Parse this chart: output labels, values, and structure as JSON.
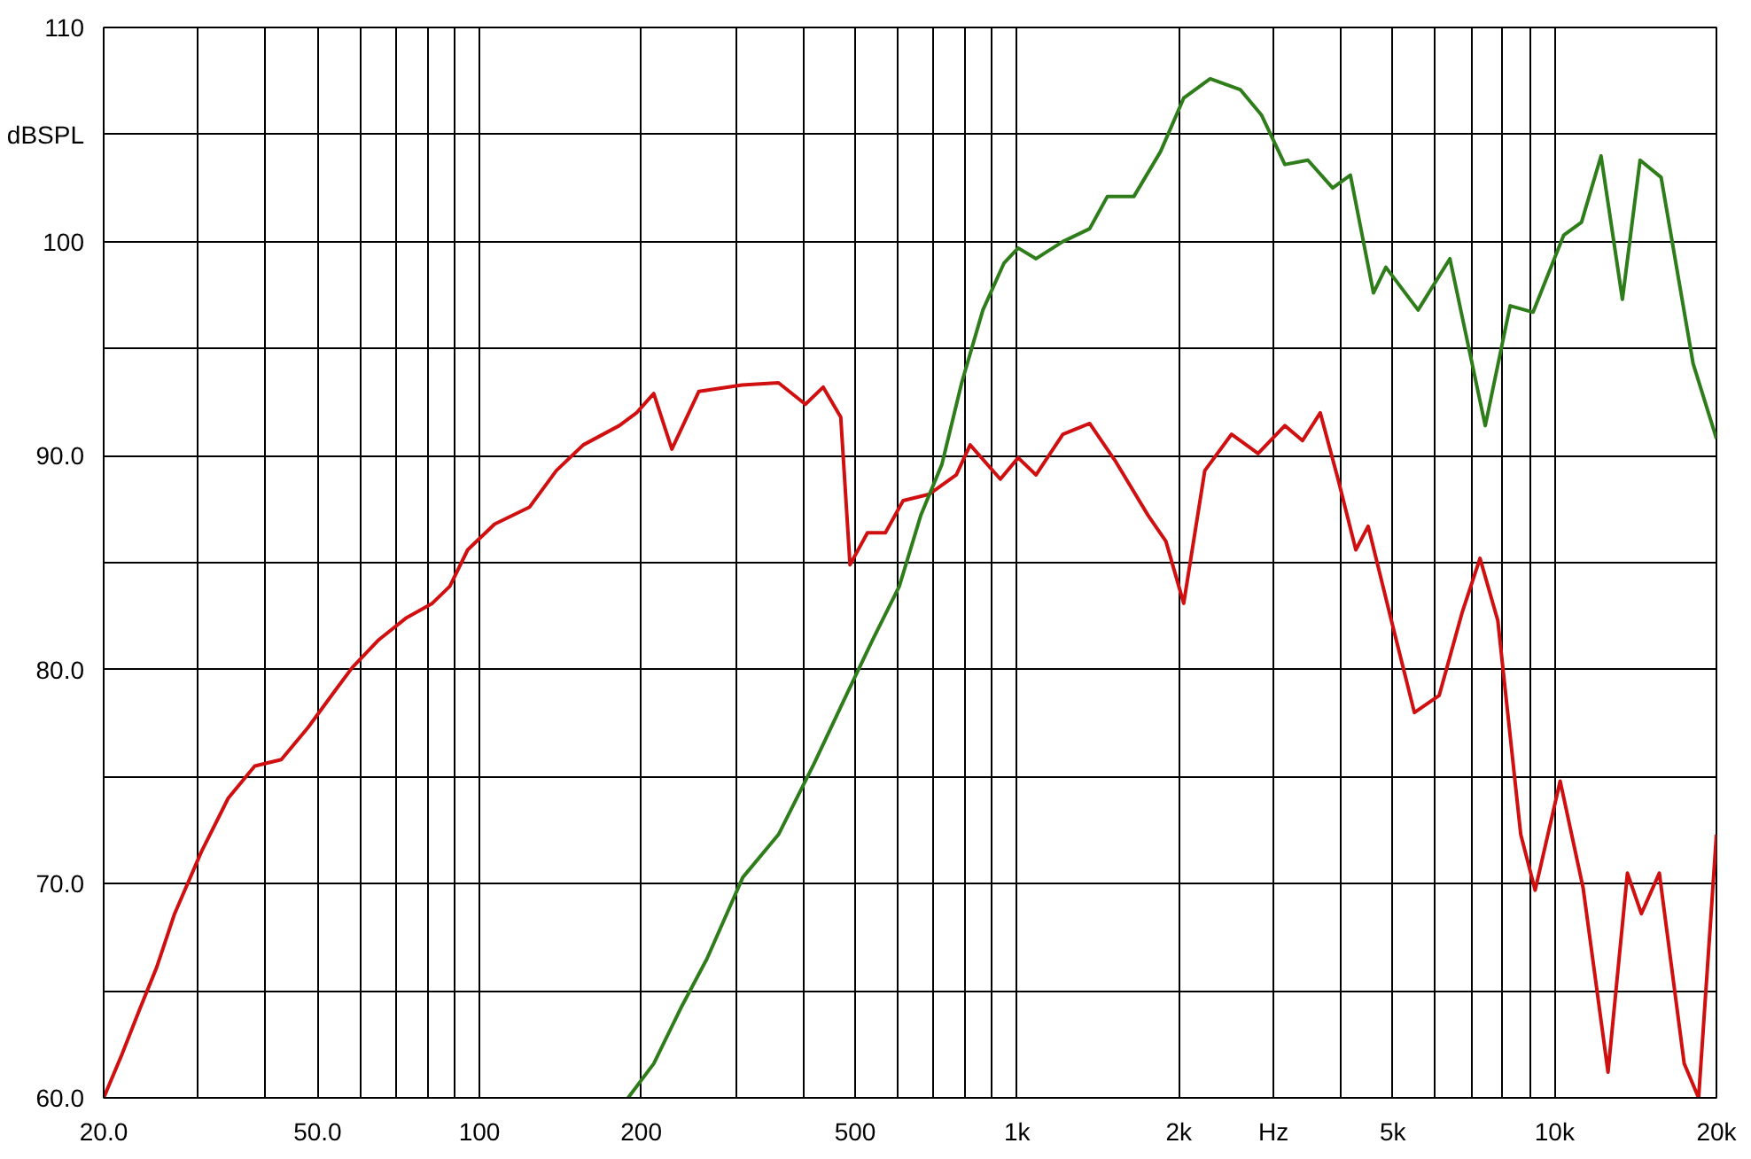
{
  "chart_data": {
    "type": "line",
    "log": "x",
    "grid": true,
    "xlim": [
      20,
      20000
    ],
    "ylim": [
      60,
      110
    ],
    "xticks": [
      {
        "value": 20,
        "label": "20.0"
      },
      {
        "value": 30,
        "label": null
      },
      {
        "value": 40,
        "label": null
      },
      {
        "value": 50,
        "label": "50.0"
      },
      {
        "value": 60,
        "label": null
      },
      {
        "value": 70,
        "label": null
      },
      {
        "value": 80,
        "label": null
      },
      {
        "value": 90,
        "label": null
      },
      100,
      200,
      {
        "value": 300,
        "label": null
      },
      {
        "value": 400,
        "label": null
      },
      500,
      {
        "value": 600,
        "label": null
      },
      {
        "value": 700,
        "label": null
      },
      {
        "value": 800,
        "label": null
      },
      {
        "value": 900,
        "label": null
      },
      {
        "value": 1000,
        "label": "1k"
      },
      {
        "value": 2000,
        "label": "2k"
      },
      {
        "value": 3000,
        "label": "Hz"
      },
      {
        "value": 4000,
        "label": null
      },
      {
        "value": 5000,
        "label": "5k"
      },
      {
        "value": 6000,
        "label": null
      },
      {
        "value": 7000,
        "label": null
      },
      {
        "value": 8000,
        "label": null
      },
      {
        "value": 9000,
        "label": null
      },
      {
        "value": 10000,
        "label": "10k"
      },
      {
        "value": 20000,
        "label": "20k"
      }
    ],
    "yticks": [
      {
        "value": 60,
        "label": "60.0"
      },
      {
        "value": 65,
        "label": null
      },
      {
        "value": 70,
        "label": "70.0"
      },
      {
        "value": 75,
        "label": null
      },
      {
        "value": 80,
        "label": "80.0"
      },
      {
        "value": 85,
        "label": null
      },
      {
        "value": 90,
        "label": "90.0"
      },
      {
        "value": 95,
        "label": null
      },
      100,
      {
        "value": 105,
        "label": "dBSPL"
      },
      110
    ],
    "series": [
      {
        "color": "#d01010",
        "x": [
          20,
          21.6,
          23.3,
          25.1,
          27.1,
          30.4,
          34.1,
          38.2,
          42.8,
          48,
          53.8,
          58,
          65,
          72.9,
          81.7,
          88.1,
          95.1,
          106.7,
          124,
          139,
          156,
          182,
          196,
          211,
          228,
          256,
          308,
          360,
          404,
          436,
          470,
          489,
          527,
          569,
          614,
          687,
          771,
          818,
          931,
          1005,
          1085,
          1217,
          1365,
          1528,
          1754,
          1892,
          2042,
          2235,
          2507,
          2808,
          3149,
          3397,
          3665,
          3955,
          4268,
          4500,
          4970,
          5485,
          6100,
          6735,
          7265,
          7840,
          8650,
          9200,
          10240,
          11300,
          12570,
          13660,
          14500,
          15660,
          17420,
          18530,
          20000
        ],
        "values": [
          60,
          62.0,
          64.1,
          66.1,
          68.6,
          71.5,
          74.0,
          75.5,
          75.8,
          77.3,
          79.0,
          80.1,
          81.4,
          82.4,
          83.1,
          83.9,
          85.6,
          86.8,
          87.6,
          89.3,
          90.5,
          91.4,
          92.0,
          92.9,
          90.3,
          93.0,
          93.3,
          93.4,
          92.4,
          93.2,
          91.8,
          84.9,
          86.4,
          86.4,
          87.9,
          88.2,
          89.1,
          90.5,
          88.9,
          89.9,
          89.1,
          91.0,
          91.5,
          89.7,
          87.2,
          86.0,
          83.1,
          89.3,
          91.0,
          90.1,
          91.4,
          90.7,
          92.0,
          88.9,
          85.6,
          86.7,
          82.3,
          78.0,
          78.8,
          82.7,
          85.2,
          82.3,
          72.3,
          69.7,
          74.8,
          69.8,
          61.2,
          70.5,
          68.6,
          70.5,
          61.6,
          60,
          72.3
        ]
      },
      {
        "color": "#2e7d1a",
        "x": [
          189,
          211,
          237,
          265,
          309,
          360,
          419,
          481,
          539,
          604,
          662,
          725,
          789,
          864,
          946,
          1005,
          1085,
          1217,
          1365,
          1472,
          1649,
          1849,
          2042,
          2287,
          2601,
          2851,
          3149,
          3476,
          3865,
          4170,
          4603,
          4854,
          5573,
          6385,
          7430,
          8265,
          9120,
          10400,
          11220,
          12200,
          13370,
          14420,
          15780,
          18100,
          20000
        ],
        "values": [
          60,
          61.6,
          64.2,
          66.5,
          70.3,
          72.3,
          75.6,
          78.8,
          81.4,
          83.9,
          87.2,
          89.6,
          93.4,
          96.8,
          99.0,
          99.7,
          99.2,
          100.0,
          100.6,
          102.1,
          102.1,
          104.2,
          106.7,
          107.6,
          107.1,
          105.9,
          103.6,
          103.8,
          102.5,
          103.1,
          97.6,
          98.8,
          96.8,
          99.2,
          91.4,
          97.0,
          96.7,
          100.3,
          100.9,
          104.0,
          97.3,
          103.8,
          103.0,
          94.3,
          90.8
        ]
      }
    ]
  }
}
